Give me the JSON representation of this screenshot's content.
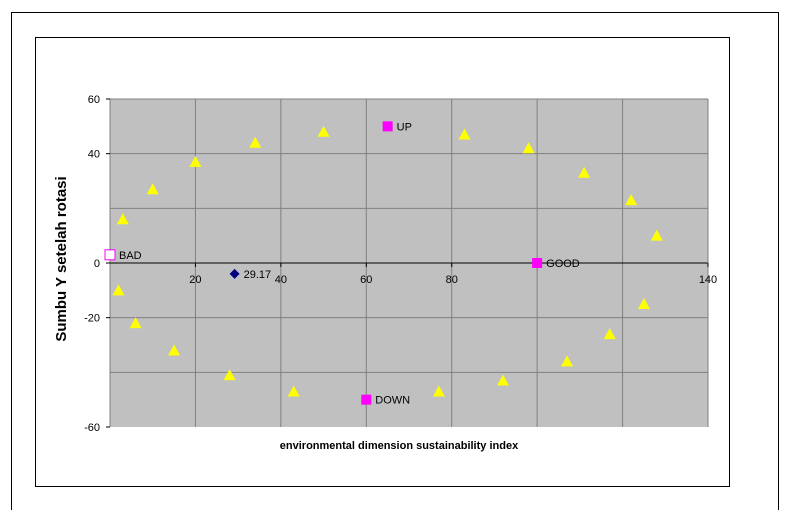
{
  "chart_data": {
    "type": "scatter",
    "xlabel": "environmental dimension sustainability index",
    "ylabel": "Sumbu Y setelah rotasi",
    "xlim": [
      0,
      140
    ],
    "ylim": [
      -60,
      60
    ],
    "x_ticks": [
      20,
      40,
      60,
      80,
      140
    ],
    "y_ticks": [
      60,
      40,
      0,
      -20,
      -60
    ],
    "grid": "vertical and horizontal gridlines every 20 units",
    "plot_background": "#c0c0c0",
    "series": [
      {
        "marker": "triangle",
        "color": "#ffff00",
        "points": [
          {
            "x": 3,
            "y": 16
          },
          {
            "x": 10,
            "y": 27
          },
          {
            "x": 20,
            "y": 37
          },
          {
            "x": 34,
            "y": 44
          },
          {
            "x": 50,
            "y": 48
          },
          {
            "x": 83,
            "y": 47
          },
          {
            "x": 98,
            "y": 42
          },
          {
            "x": 111,
            "y": 33
          },
          {
            "x": 122,
            "y": 23
          },
          {
            "x": 128,
            "y": 10
          },
          {
            "x": 2,
            "y": -10
          },
          {
            "x": 6,
            "y": -22
          },
          {
            "x": 15,
            "y": -32
          },
          {
            "x": 28,
            "y": -41
          },
          {
            "x": 43,
            "y": -47
          },
          {
            "x": 77,
            "y": -47
          },
          {
            "x": 92,
            "y": -43
          },
          {
            "x": 107,
            "y": -36
          },
          {
            "x": 117,
            "y": -26
          },
          {
            "x": 125,
            "y": -15
          }
        ]
      },
      {
        "marker": "square",
        "color": "#ff00ff",
        "points": [
          {
            "x": 65,
            "y": 50,
            "label": "UP"
          },
          {
            "x": 60,
            "y": -50,
            "label": "DOWN"
          },
          {
            "x": 100,
            "y": 0,
            "label": "GOOD"
          }
        ]
      },
      {
        "marker": "hollow-square",
        "color": "#ff00ff",
        "points": [
          {
            "x": 0,
            "y": 3,
            "label": "BAD"
          }
        ]
      },
      {
        "marker": "diamond",
        "color": "#000080",
        "points": [
          {
            "x": 29.17,
            "y": -4,
            "label": "29.17"
          }
        ]
      }
    ]
  }
}
